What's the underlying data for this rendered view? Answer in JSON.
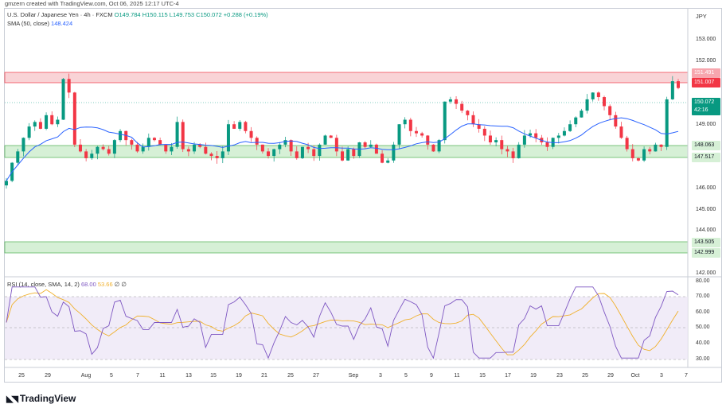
{
  "credit": "gmzern created with TradingView.com, Oct 06, 2025 12:17 UTC-4",
  "currency": "JPY",
  "legend": {
    "symbol": "U.S. Dollar / Japanese Yen · 4h · FXCM",
    "open": "O149.784",
    "high": "H150.115",
    "low": "L149.753",
    "close": "C150.072",
    "change": "+0.288 (+0.19%)",
    "sma_label": "SMA (50, close)",
    "sma_value": "148.424",
    "rsi_label": "RSI (14, close, SMA, 14, 2)",
    "rsi_value": "68.00",
    "rsi_sma_value": "53.66",
    "rsi_extra1": "∅",
    "rsi_extra2": "∅"
  },
  "colors": {
    "up": "#089981",
    "down": "#f23645",
    "sma": "#2962ff",
    "rsi": "#7e57c2",
    "rsi_sma": "#f0b02c",
    "green_zone": "#d6f0d6",
    "red_zone": "#f9d3d6"
  },
  "price_axis": [
    "153.000",
    "152.000",
    "151.000",
    "150.000",
    "149.000",
    "148.000",
    "147.000",
    "146.000",
    "145.000",
    "144.000",
    "143.000",
    "142.000"
  ],
  "rsi_axis": [
    "80.00",
    "70.00",
    "60.00",
    "50.00",
    "40.00",
    "30.00"
  ],
  "time_axis": [
    "25",
    "29",
    "Aug",
    "5",
    "7",
    "11",
    "13",
    "15",
    "19",
    "21",
    "25",
    "27",
    "Sep",
    "3",
    "5",
    "9",
    "11",
    "15",
    "17",
    "19",
    "23",
    "25",
    "29",
    "Oct",
    "3",
    "7"
  ],
  "price_tags": {
    "red_top": "151.491",
    "red_bottom": "151.007",
    "last_price": "150.072",
    "countdown": "42:16",
    "green_top": "148.063",
    "green_bottom": "147.517",
    "low_top": "143.505",
    "low_bottom": "142.999"
  },
  "brand": "TradingView",
  "chart_data": {
    "type": "candlestick",
    "resistance_zone": [
      151.007,
      151.491
    ],
    "support_zone": [
      147.517,
      148.063
    ],
    "lower_zone": [
      142.999,
      143.505
    ],
    "ylim": [
      141.8,
      153.6
    ],
    "close_path": [
      146.0,
      146.8,
      147.3,
      147.9,
      148.4,
      148.6,
      148.3,
      148.9,
      148.5,
      148.7,
      150.5,
      149.9,
      147.6,
      147.3,
      147.0,
      147.2,
      147.5,
      147.4,
      147.2,
      147.8,
      148.2,
      147.8,
      147.6,
      147.3,
      147.5,
      147.9,
      147.8,
      147.6,
      147.3,
      147.5,
      148.6,
      147.4,
      147.3,
      147.6,
      147.5,
      147.2,
      147.1,
      147.0,
      147.3,
      148.5,
      148.3,
      148.6,
      148.2,
      147.9,
      147.6,
      147.3,
      147.1,
      147.4,
      147.6,
      147.8,
      147.3,
      147.0,
      147.5,
      147.4,
      147.1,
      147.6,
      148.0,
      147.9,
      147.3,
      146.9,
      147.4,
      147.1,
      147.7,
      147.5,
      147.6,
      147.2,
      146.8,
      146.9,
      147.6,
      148.5,
      148.7,
      148.2,
      148.1,
      148.0,
      147.6,
      147.3,
      147.8,
      149.5,
      149.6,
      149.4,
      149.1,
      148.9,
      148.5,
      148.3,
      148.0,
      147.7,
      147.8,
      147.4,
      147.3,
      147.0,
      147.6,
      148.0,
      148.1,
      147.9,
      147.7,
      147.5,
      147.9,
      148.0,
      148.2,
      148.5,
      148.8,
      149.1,
      149.6,
      149.9,
      149.7,
      149.3,
      148.9,
      148.4,
      147.9,
      147.4,
      147.0,
      146.9,
      147.4,
      147.3,
      147.6,
      147.5,
      149.6,
      150.4,
      150.1
    ]
  }
}
